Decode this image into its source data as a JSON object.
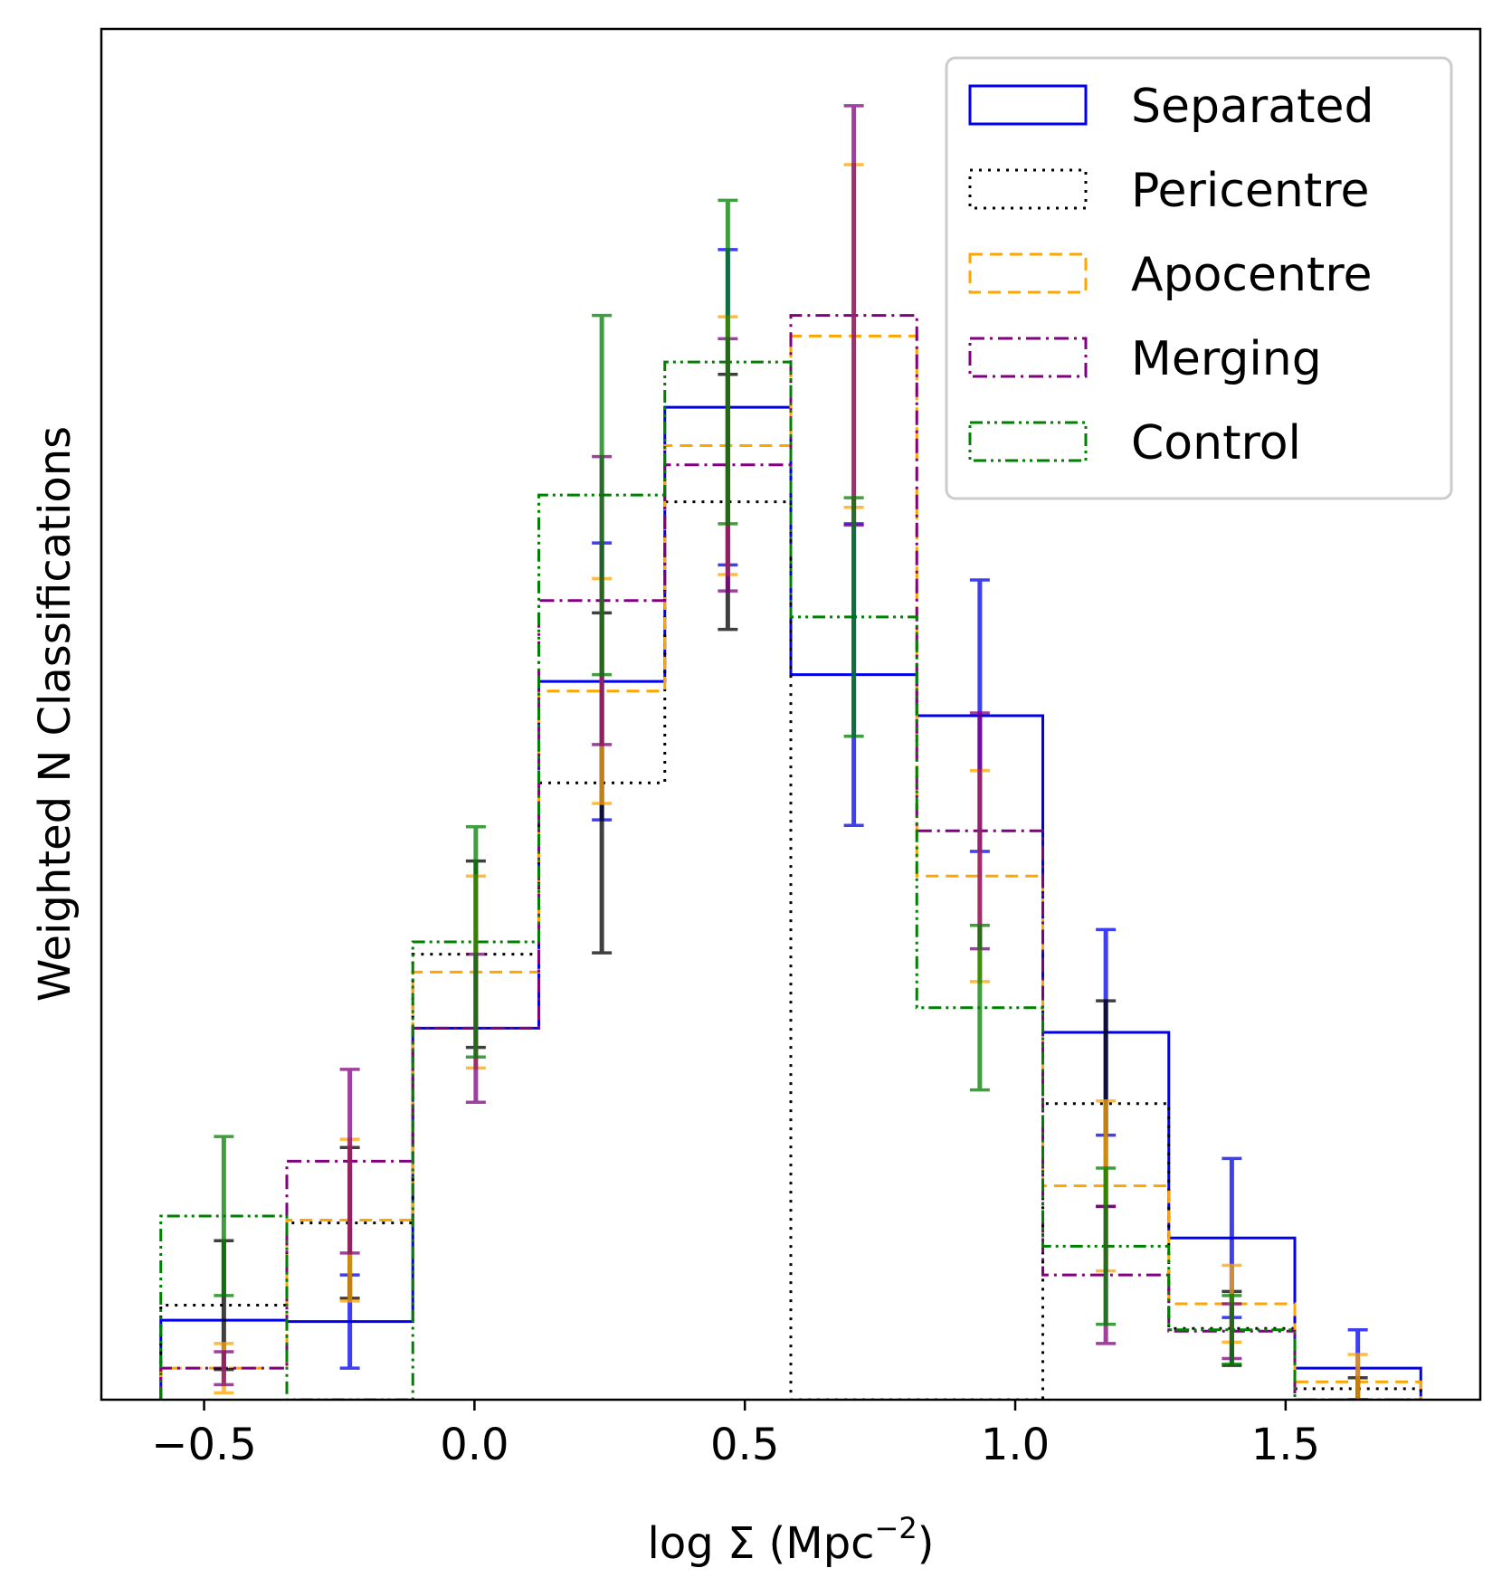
{
  "chart_data": {
    "type": "histogram",
    "xlabel": "log  Σ (Mpc",
    "xlabel_superscript": "−2",
    "xlabel_suffix": ")",
    "ylabel": "Weighted N Classifications",
    "xlim": [
      -0.69,
      1.86
    ],
    "ylim": [
      0,
      1.0
    ],
    "y_tick_labels_shown": false,
    "x_ticks": [
      -0.5,
      0.0,
      0.5,
      1.0,
      1.5
    ],
    "x_tick_labels": [
      "−0.5",
      "0.0",
      "0.5",
      "1.0",
      "1.5"
    ],
    "bin_edges": [
      -0.58,
      -0.347,
      -0.114,
      0.119,
      0.352,
      0.585,
      0.818,
      1.051,
      1.284,
      1.517,
      1.75
    ],
    "legend_position": "upper right",
    "series": [
      {
        "name": "Separated",
        "color": "#0000ee",
        "dash": "solid",
        "values": [
          0.058,
          0.057,
          0.271,
          0.524,
          0.724,
          0.529,
          0.499,
          0.268,
          0.118,
          0.023
        ],
        "errors": [
          0.0,
          0.034,
          0.0,
          0.101,
          0.115,
          0.11,
          0.099,
          0.075,
          0.058,
          0.028
        ]
      },
      {
        "name": "Pericentre",
        "color": "#000000",
        "dash": "dotted",
        "values": [
          0.069,
          0.129,
          0.325,
          0.45,
          0.655,
          0.0,
          0.0,
          0.216,
          0.052,
          0.008
        ],
        "errors": [
          0.047,
          0.055,
          0.068,
          0.124,
          0.093,
          0.0,
          0.0,
          0.075,
          0.027,
          0.008
        ]
      },
      {
        "name": "Apocentre",
        "color": "#ffa500",
        "dash": "dashed",
        "values": [
          0.023,
          0.131,
          0.312,
          0.517,
          0.696,
          0.776,
          0.382,
          0.156,
          0.07,
          0.013
        ],
        "errors": [
          0.018,
          0.059,
          0.07,
          0.082,
          0.094,
          0.125,
          0.077,
          0.062,
          0.028,
          0.02
        ]
      },
      {
        "name": "Merging",
        "color": "#800080",
        "dash": "dashdot",
        "values": [
          0.023,
          0.174,
          0.271,
          0.583,
          0.682,
          0.791,
          0.415,
          0.091,
          0.05,
          0.0
        ],
        "errors": [
          0.012,
          0.067,
          0.054,
          0.105,
          0.092,
          0.153,
          0.086,
          0.05,
          0.02,
          0.0
        ]
      },
      {
        "name": "Control",
        "color": "#008000",
        "dash": "dashdotdot",
        "values": [
          0.134,
          0.0,
          0.334,
          0.66,
          0.757,
          0.571,
          0.286,
          0.112,
          0.051,
          0.0
        ],
        "errors": [
          0.058,
          0.0,
          0.084,
          0.131,
          0.118,
          0.087,
          0.06,
          0.057,
          0.025,
          0.0
        ]
      }
    ]
  }
}
